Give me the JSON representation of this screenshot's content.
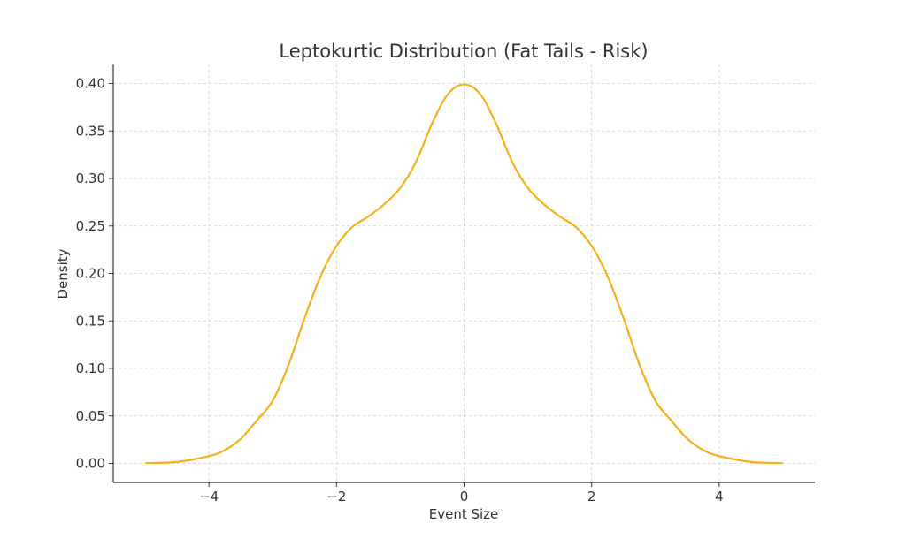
{
  "chart_data": {
    "type": "line",
    "title": "Leptokurtic Distribution (Fat Tails - Risk)",
    "xlabel": "Event Size",
    "ylabel": "Density",
    "xlim": [
      -5.5,
      5.5
    ],
    "ylim": [
      -0.02,
      0.42
    ],
    "xticks": [
      -4,
      -2,
      0,
      2,
      4
    ],
    "xtick_labels": [
      "−4",
      "−2",
      "0",
      "2",
      "4"
    ],
    "yticks": [
      0.0,
      0.05,
      0.1,
      0.15,
      0.2,
      0.25,
      0.3,
      0.35,
      0.4
    ],
    "ytick_labels": [
      "0.00",
      "0.05",
      "0.10",
      "0.15",
      "0.20",
      "0.25",
      "0.30",
      "0.35",
      "0.40"
    ],
    "grid": true,
    "line_color": "#f5b01c",
    "series": [
      {
        "name": "density",
        "x": [
          -5,
          -4.5,
          -4,
          -3.75,
          -3.5,
          -3.25,
          -3,
          -2.75,
          -2.5,
          -2.25,
          -2,
          -1.75,
          -1.5,
          -1.25,
          -1,
          -0.75,
          -0.5,
          -0.25,
          0,
          0.25,
          0.5,
          0.75,
          1,
          1.25,
          1.5,
          1.75,
          2,
          2.25,
          2.5,
          2.75,
          3,
          3.25,
          3.5,
          3.75,
          4,
          4.5,
          5
        ],
        "y": [
          0.0003,
          0.0015,
          0.0077,
          0.014,
          0.026,
          0.045,
          0.066,
          0.104,
          0.153,
          0.197,
          0.229,
          0.249,
          0.26,
          0.273,
          0.29,
          0.318,
          0.358,
          0.389,
          0.399,
          0.389,
          0.358,
          0.318,
          0.29,
          0.273,
          0.26,
          0.249,
          0.229,
          0.197,
          0.153,
          0.104,
          0.066,
          0.045,
          0.026,
          0.014,
          0.0077,
          0.0015,
          0.0003
        ]
      }
    ]
  }
}
